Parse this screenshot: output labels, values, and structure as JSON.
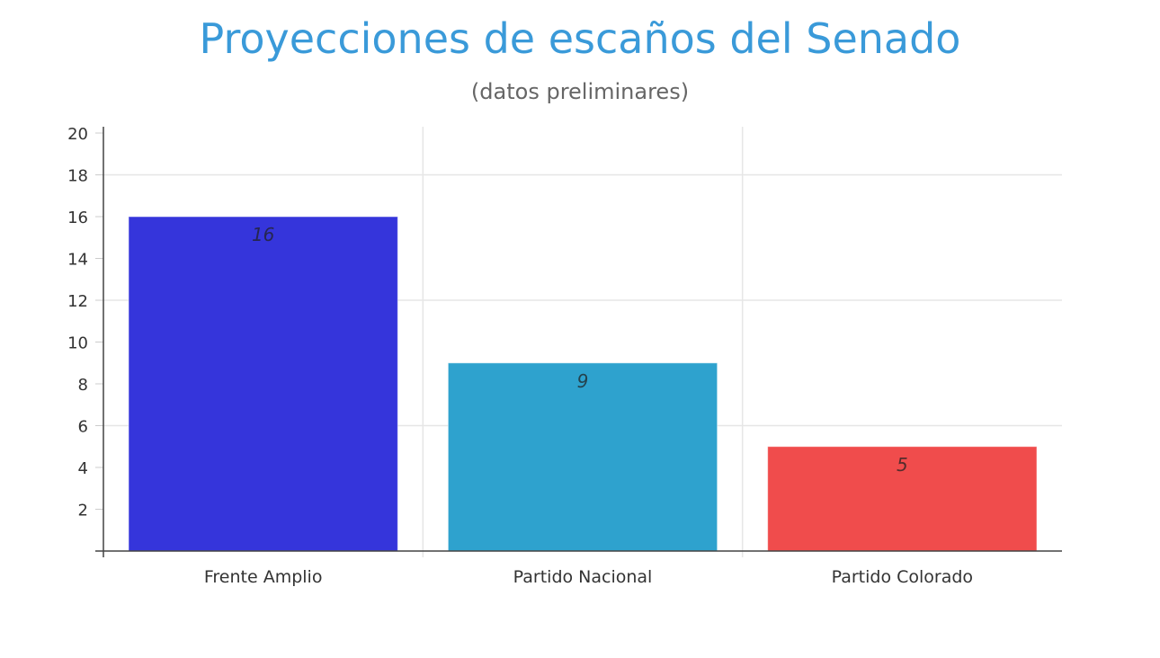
{
  "chart_data": {
    "type": "bar",
    "title": "Proyecciones de escaños del Senado",
    "subtitle": "(datos preliminares)",
    "xlabel": "",
    "ylabel": "",
    "categories": [
      "Frente Amplio",
      "Partido Nacional",
      "Partido Colorado"
    ],
    "values": [
      16,
      9,
      5
    ],
    "data_labels": [
      "16",
      "9",
      "5"
    ],
    "colors": [
      "#3535db",
      "#2ea2ce",
      "#f04c4c"
    ],
    "ylim": [
      0,
      20
    ],
    "yticks": [
      2,
      4,
      6,
      8,
      10,
      12,
      14,
      16,
      18,
      20
    ],
    "grid": true,
    "legend": "none"
  }
}
